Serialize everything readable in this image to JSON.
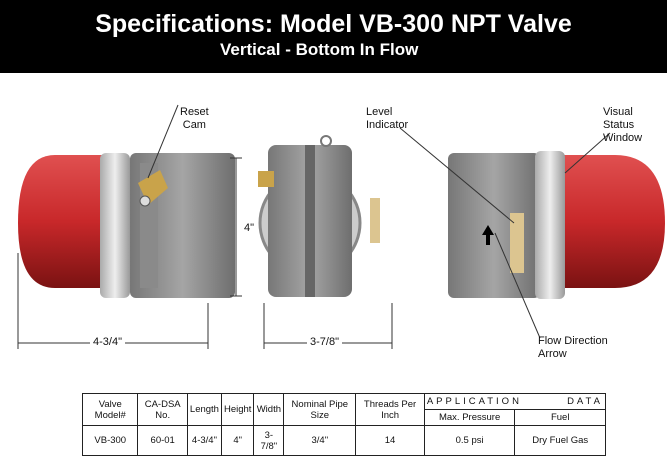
{
  "header": {
    "title": "Specifications: Model VB-300 NPT Valve",
    "subtitle": "Vertical - Bottom In Flow"
  },
  "callouts": {
    "reset_cam": [
      "Reset",
      "Cam"
    ],
    "level_indicator": [
      "Level",
      "Indicator"
    ],
    "visual_status": [
      "Visual",
      "Status",
      "Window"
    ],
    "flow_direction": [
      "Flow Direction",
      "Arrow"
    ]
  },
  "dimensions": {
    "height": "4\"",
    "length": "4-3/4\"",
    "width": "3-7/8\""
  },
  "colors": {
    "dome": "#c8282a",
    "body": "#8e8e8e",
    "band": "#c9c9c9"
  },
  "table": {
    "headers": [
      "Valve Model#",
      "CA-DSA No.",
      "Length",
      "Height",
      "Width",
      "Nominal Pipe Size",
      "Threads Per Inch"
    ],
    "application_a": "APPLICATION",
    "application_b": "DATA",
    "sub_headers": [
      "Max. Pressure",
      "Fuel"
    ],
    "row": [
      "VB-300",
      "60-01",
      "4-3/4\"",
      "4\"",
      "3-7/8\"",
      "3/4\"",
      "14",
      "0.5 psi",
      "Dry Fuel Gas"
    ]
  }
}
